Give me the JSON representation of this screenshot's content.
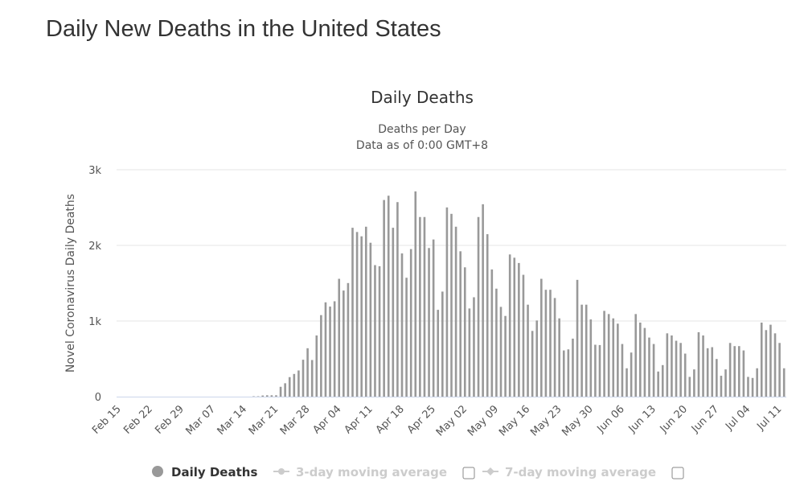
{
  "page_title": "Daily New Deaths in the United States",
  "chart_data": {
    "type": "bar",
    "title": "Daily Deaths",
    "subtitle": [
      "Deaths per Day",
      "Data as of 0:00 GMT+8"
    ],
    "ylabel": "Novel Coronavirus Daily Deaths",
    "xlabel": "",
    "ylim": [
      0,
      3000
    ],
    "yticks": [
      {
        "value": 0,
        "label": "0"
      },
      {
        "value": 1000,
        "label": "1k"
      },
      {
        "value": 2000,
        "label": "2k"
      },
      {
        "value": 3000,
        "label": "3k"
      }
    ],
    "grid": true,
    "bar_color": "#999999",
    "xtick_labels": [
      "Feb 15",
      "Feb 22",
      "Feb 29",
      "Mar 07",
      "Mar 14",
      "Mar 21",
      "Mar 28",
      "Apr 04",
      "Apr 11",
      "Apr 18",
      "Apr 25",
      "May 02",
      "May 09",
      "May 16",
      "May 23",
      "May 30",
      "Jun 06",
      "Jun 13",
      "Jun 20",
      "Jun 27",
      "Jul 04",
      "Jul 11"
    ],
    "categories": [
      "Feb 15",
      "Feb 16",
      "Feb 17",
      "Feb 18",
      "Feb 19",
      "Feb 20",
      "Feb 21",
      "Feb 22",
      "Feb 23",
      "Feb 24",
      "Feb 25",
      "Feb 26",
      "Feb 27",
      "Feb 28",
      "Feb 29",
      "Mar 01",
      "Mar 02",
      "Mar 03",
      "Mar 04",
      "Mar 05",
      "Mar 06",
      "Mar 07",
      "Mar 08",
      "Mar 09",
      "Mar 10",
      "Mar 11",
      "Mar 12",
      "Mar 13",
      "Mar 14",
      "Mar 15",
      "Mar 16",
      "Mar 17",
      "Mar 18",
      "Mar 19",
      "Mar 20",
      "Mar 21",
      "Mar 22",
      "Mar 23",
      "Mar 24",
      "Mar 25",
      "Mar 26",
      "Mar 27",
      "Mar 28",
      "Mar 29",
      "Mar 30",
      "Mar 31",
      "Apr 01",
      "Apr 02",
      "Apr 03",
      "Apr 04",
      "Apr 05",
      "Apr 06",
      "Apr 07",
      "Apr 08",
      "Apr 09",
      "Apr 10",
      "Apr 11",
      "Apr 12",
      "Apr 13",
      "Apr 14",
      "Apr 15",
      "Apr 16",
      "Apr 17",
      "Apr 18",
      "Apr 19",
      "Apr 20",
      "Apr 21",
      "Apr 22",
      "Apr 23",
      "Apr 24",
      "Apr 25",
      "Apr 26",
      "Apr 27",
      "Apr 28",
      "Apr 29",
      "Apr 30",
      "May 01",
      "May 02",
      "May 03",
      "May 04",
      "May 05",
      "May 06",
      "May 07",
      "May 08",
      "May 09",
      "May 10",
      "May 11",
      "May 12",
      "May 13",
      "May 14",
      "May 15",
      "May 16",
      "May 17",
      "May 18",
      "May 19",
      "May 20",
      "May 21",
      "May 22",
      "May 23",
      "May 24",
      "May 25",
      "May 26",
      "May 27",
      "May 28",
      "May 29",
      "May 30",
      "May 31",
      "Jun 01",
      "Jun 02",
      "Jun 03",
      "Jun 04",
      "Jun 05",
      "Jun 06",
      "Jun 07",
      "Jun 08",
      "Jun 09",
      "Jun 10",
      "Jun 11",
      "Jun 12",
      "Jun 13",
      "Jun 14",
      "Jun 15",
      "Jun 16",
      "Jun 17",
      "Jun 18",
      "Jun 19",
      "Jun 20",
      "Jun 21",
      "Jun 22",
      "Jun 23",
      "Jun 24",
      "Jun 25",
      "Jun 26",
      "Jun 27",
      "Jun 28",
      "Jun 29",
      "Jun 30",
      "Jul 01",
      "Jul 02",
      "Jul 03",
      "Jul 04",
      "Jul 05",
      "Jul 06",
      "Jul 07",
      "Jul 08",
      "Jul 09",
      "Jul 10",
      "Jul 11",
      "Jul 12"
    ],
    "series": [
      {
        "name": "Daily Deaths",
        "values": [
          0,
          0,
          0,
          0,
          0,
          0,
          0,
          0,
          0,
          0,
          0,
          0,
          0,
          0,
          0,
          0,
          0,
          0,
          0,
          0,
          0,
          0,
          0,
          0,
          0,
          0,
          0,
          0,
          0,
          0,
          5,
          5,
          15,
          18,
          18,
          18,
          130,
          177,
          258,
          300,
          346,
          488,
          640,
          484,
          809,
          1078,
          1247,
          1191,
          1261,
          1558,
          1403,
          1502,
          2233,
          2177,
          2120,
          2247,
          2035,
          1739,
          1724,
          2600,
          2657,
          2233,
          2572,
          1894,
          1572,
          1951,
          2714,
          2375,
          2375,
          1965,
          2078,
          1148,
          1389,
          2502,
          2417,
          2247,
          1922,
          1710,
          1166,
          1314,
          2375,
          2544,
          2148,
          1682,
          1428,
          1187,
          1067,
          1880,
          1837,
          1767,
          1611,
          1216,
          869,
          1007,
          1558,
          1413,
          1413,
          1304,
          1035,
          611,
          625,
          767,
          1544,
          1216,
          1216,
          1021,
          686,
          682,
          1134,
          1092,
          1035,
          965,
          696,
          375,
          583,
          1092,
          979,
          908,
          781,
          696,
          332,
          417,
          837,
          809,
          739,
          710,
          569,
          261,
          360,
          852,
          809,
          640,
          654,
          498,
          276,
          360,
          710,
          668,
          668,
          611,
          261,
          247,
          375,
          979,
          880,
          951,
          837,
          710,
          375
        ]
      }
    ]
  },
  "legend": {
    "items": [
      {
        "label": "Daily Deaths",
        "active": true,
        "color": "#999999",
        "marker": "circle"
      },
      {
        "label": "3-day moving average",
        "active": false,
        "color": "#cccccc",
        "marker": "circle-line",
        "checkbox": false
      },
      {
        "label": "7-day moving average",
        "active": false,
        "color": "#cccccc",
        "marker": "diamond-line",
        "checkbox": false
      }
    ]
  }
}
